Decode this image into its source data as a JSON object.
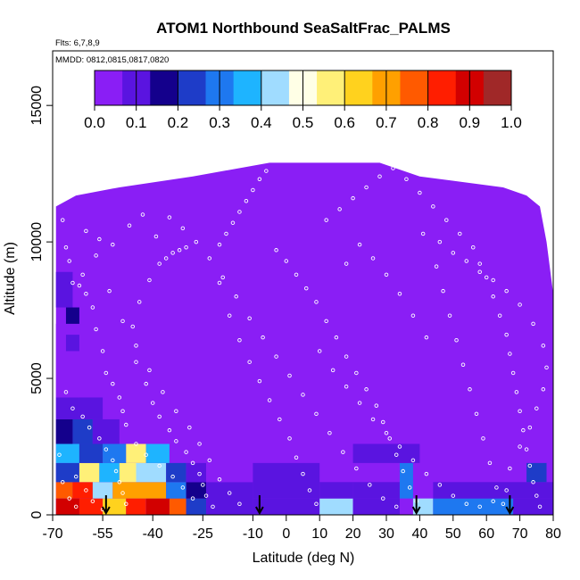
{
  "chart_data": {
    "type": "heatmap",
    "title": "ATOM1 Northbound SeaSaltFrac_PALMS",
    "flights_note": "Flts: 6,7,8,9",
    "dates_note": "MMDD: 0812,0815,0817,0820",
    "xlabel": "Latitude (deg N)",
    "ylabel": "Altitude (m)",
    "xlim": [
      -70,
      80
    ],
    "ylim": [
      0,
      17000
    ],
    "x_ticks": [
      -70,
      -55,
      -40,
      -25,
      -10,
      0,
      10,
      20,
      30,
      40,
      50,
      60,
      70,
      80
    ],
    "x_tick_labels": [
      "-70",
      "-55",
      "-40",
      "-25",
      "-10",
      "0",
      "10",
      "20",
      "30",
      "40",
      "50",
      "60",
      "70",
      "80"
    ],
    "y_ticks": [
      0,
      5000,
      10000,
      15000
    ],
    "y_tick_labels": [
      "0",
      "5000",
      "10000",
      "15000"
    ],
    "colorbar": {
      "range": [
        0,
        1
      ],
      "tick_labels": [
        "0.0",
        "0.1",
        "0.2",
        "0.3",
        "0.4",
        "0.5",
        "0.6",
        "0.7",
        "0.8",
        "0.9",
        "1.0"
      ],
      "colors": [
        "#8a1ef5",
        "#5a14e0",
        "#14008c",
        "#1e3cc8",
        "#1e78f0",
        "#1eb4ff",
        "#a0dcff",
        "#ffffe6",
        "#fff078",
        "#ffd21e",
        "#ffa000",
        "#ff5a00",
        "#ff1e00",
        "#d20000",
        "#a02828"
      ]
    },
    "ceiling_profile": [
      {
        "lat": -69,
        "alt": 11300
      },
      {
        "lat": -63,
        "alt": 11700
      },
      {
        "lat": -50,
        "alt": 12000
      },
      {
        "lat": -28,
        "alt": 12400
      },
      {
        "lat": -5,
        "alt": 12900
      },
      {
        "lat": 28,
        "alt": 12900
      },
      {
        "lat": 40,
        "alt": 12400
      },
      {
        "lat": 65,
        "alt": 12000
      },
      {
        "lat": 72,
        "alt": 11700
      },
      {
        "lat": 76,
        "alt": 11300
      },
      {
        "lat": 78,
        "alt": 10000
      },
      {
        "lat": 80,
        "alt": 8100
      }
    ],
    "background_value": 0.02,
    "regions": [
      {
        "lat": [
          -69,
          -62
        ],
        "alt": [
          0,
          600
        ],
        "value": 0.92
      },
      {
        "lat": [
          -62,
          -55
        ],
        "alt": [
          0,
          600
        ],
        "value": 0.8
      },
      {
        "lat": [
          -55,
          -48
        ],
        "alt": [
          0,
          600
        ],
        "value": 0.65
      },
      {
        "lat": [
          -48,
          -42
        ],
        "alt": [
          0,
          600
        ],
        "value": 0.85
      },
      {
        "lat": [
          -42,
          -35
        ],
        "alt": [
          0,
          600
        ],
        "value": 0.9
      },
      {
        "lat": [
          -35,
          -30
        ],
        "alt": [
          0,
          600
        ],
        "value": 0.78
      },
      {
        "lat": [
          -69,
          -64
        ],
        "alt": [
          600,
          1200
        ],
        "value": 0.75
      },
      {
        "lat": [
          -64,
          -58
        ],
        "alt": [
          600,
          1200
        ],
        "value": 0.85
      },
      {
        "lat": [
          -58,
          -52
        ],
        "alt": [
          600,
          1200
        ],
        "value": 0.45
      },
      {
        "lat": [
          -52,
          -45
        ],
        "alt": [
          600,
          1200
        ],
        "value": 0.68
      },
      {
        "lat": [
          -45,
          -36
        ],
        "alt": [
          600,
          1200
        ],
        "value": 0.7
      },
      {
        "lat": [
          -36,
          -30
        ],
        "alt": [
          600,
          1200
        ],
        "value": 0.3
      },
      {
        "lat": [
          -69,
          -62
        ],
        "alt": [
          1200,
          1900
        ],
        "value": 0.25
      },
      {
        "lat": [
          -62,
          -56
        ],
        "alt": [
          1200,
          1900
        ],
        "value": 0.55
      },
      {
        "lat": [
          -56,
          -50
        ],
        "alt": [
          1200,
          1900
        ],
        "value": 0.35
      },
      {
        "lat": [
          -50,
          -45
        ],
        "alt": [
          1200,
          1900
        ],
        "value": 0.55
      },
      {
        "lat": [
          -45,
          -36
        ],
        "alt": [
          1200,
          1900
        ],
        "value": 0.4
      },
      {
        "lat": [
          -36,
          -30
        ],
        "alt": [
          1200,
          1900
        ],
        "value": 0.25
      },
      {
        "lat": [
          -69,
          -62
        ],
        "alt": [
          1900,
          2600
        ],
        "value": 0.35
      },
      {
        "lat": [
          -62,
          -55
        ],
        "alt": [
          1900,
          2600
        ],
        "value": 0.2
      },
      {
        "lat": [
          -55,
          -48
        ],
        "alt": [
          1900,
          2600
        ],
        "value": 0.3
      },
      {
        "lat": [
          -48,
          -42
        ],
        "alt": [
          1900,
          2600
        ],
        "value": 0.55
      },
      {
        "lat": [
          -42,
          -35
        ],
        "alt": [
          1900,
          2600
        ],
        "value": 0.35
      },
      {
        "lat": [
          -69,
          -64
        ],
        "alt": [
          2600,
          3500
        ],
        "value": 0.15
      },
      {
        "lat": [
          -64,
          -58
        ],
        "alt": [
          2600,
          3500
        ],
        "value": 0.25
      },
      {
        "lat": [
          -58,
          -50
        ],
        "alt": [
          2600,
          3500
        ],
        "value": 0.12
      },
      {
        "lat": [
          -69,
          -62
        ],
        "alt": [
          3500,
          4300
        ],
        "value": 0.1
      },
      {
        "lat": [
          -62,
          -55
        ],
        "alt": [
          3500,
          4300
        ],
        "value": 0.07
      },
      {
        "lat": [
          -69,
          -62
        ],
        "alt": [
          4300,
          7000
        ],
        "value": 0.06
      },
      {
        "lat": [
          -66,
          -62
        ],
        "alt": [
          6000,
          6600
        ],
        "value": 0.12
      },
      {
        "lat": [
          -66,
          -62
        ],
        "alt": [
          7000,
          7600
        ],
        "value": 0.15
      },
      {
        "lat": [
          -69,
          -64
        ],
        "alt": [
          7600,
          8900
        ],
        "value": 0.07
      },
      {
        "lat": [
          -30,
          -24
        ],
        "alt": [
          0,
          600
        ],
        "value": 0.2
      },
      {
        "lat": [
          -30,
          -24
        ],
        "alt": [
          600,
          1200
        ],
        "value": 0.15
      },
      {
        "lat": [
          -30,
          -24
        ],
        "alt": [
          1200,
          1900
        ],
        "value": 0.12
      },
      {
        "lat": [
          -24,
          -10
        ],
        "alt": [
          0,
          1200
        ],
        "value": 0.1
      },
      {
        "lat": [
          -24,
          -10
        ],
        "alt": [
          1200,
          1900
        ],
        "value": 0.06
      },
      {
        "lat": [
          -10,
          10
        ],
        "alt": [
          0,
          600
        ],
        "value": 0.11
      },
      {
        "lat": [
          -10,
          10
        ],
        "alt": [
          600,
          1900
        ],
        "value": 0.07
      },
      {
        "lat": [
          10,
          20
        ],
        "alt": [
          0,
          600
        ],
        "value": 0.45
      },
      {
        "lat": [
          10,
          20
        ],
        "alt": [
          600,
          1200
        ],
        "value": 0.12
      },
      {
        "lat": [
          20,
          34
        ],
        "alt": [
          0,
          600
        ],
        "value": 0.13
      },
      {
        "lat": [
          20,
          34
        ],
        "alt": [
          600,
          1200
        ],
        "value": 0.08
      },
      {
        "lat": [
          34,
          38
        ],
        "alt": [
          600,
          1900
        ],
        "value": 0.3
      },
      {
        "lat": [
          38,
          44
        ],
        "alt": [
          0,
          600
        ],
        "value": 0.4
      },
      {
        "lat": [
          44,
          68
        ],
        "alt": [
          0,
          600
        ],
        "value": 0.3
      },
      {
        "lat": [
          44,
          80
        ],
        "alt": [
          600,
          1200
        ],
        "value": 0.1
      },
      {
        "lat": [
          68,
          80
        ],
        "alt": [
          0,
          600
        ],
        "value": 0.12
      },
      {
        "lat": [
          72,
          78
        ],
        "alt": [
          1200,
          1900
        ],
        "value": 0.2
      },
      {
        "lat": [
          20,
          40
        ],
        "alt": [
          1900,
          2600
        ],
        "value": 0.1
      },
      {
        "lat": [
          -45,
          -5
        ],
        "alt": [
          2600,
          3500
        ],
        "value": 0.04
      },
      {
        "lat": [
          25,
          35
        ],
        "alt": [
          3500,
          5000
        ],
        "value": 0.05
      }
    ],
    "sample_points": [
      [
        -67,
        10800
      ],
      [
        -66,
        9800
      ],
      [
        -64,
        8500
      ],
      [
        -62,
        8400
      ],
      [
        -60,
        8100
      ],
      [
        -58,
        7600
      ],
      [
        -57,
        6800
      ],
      [
        -55,
        6000
      ],
      [
        -54,
        5200
      ],
      [
        -52,
        4800
      ],
      [
        -50,
        4300
      ],
      [
        -49,
        3800
      ],
      [
        -48,
        3300
      ],
      [
        -66,
        4500
      ],
      [
        -64,
        3900
      ],
      [
        -61,
        3600
      ],
      [
        -59,
        3200
      ],
      [
        -56,
        2800
      ],
      [
        -54,
        2400
      ],
      [
        -52,
        2000
      ],
      [
        -51,
        1600
      ],
      [
        -50,
        1200
      ],
      [
        -49,
        800
      ],
      [
        -48,
        400
      ],
      [
        -63,
        1400
      ],
      [
        -60,
        900
      ],
      [
        -58,
        500
      ],
      [
        -55,
        200
      ],
      [
        -46,
        6900
      ],
      [
        -44,
        7800
      ],
      [
        -41,
        8600
      ],
      [
        -38,
        9200
      ],
      [
        -36,
        9400
      ],
      [
        -34,
        9600
      ],
      [
        -32,
        9700
      ],
      [
        -30,
        9800
      ],
      [
        -45,
        5600
      ],
      [
        -42,
        4800
      ],
      [
        -40,
        4100
      ],
      [
        -38,
        3600
      ],
      [
        -35,
        3100
      ],
      [
        -33,
        2700
      ],
      [
        -30,
        2300
      ],
      [
        -28,
        1900
      ],
      [
        -26,
        1500
      ],
      [
        -25,
        1100
      ],
      [
        -24,
        700
      ],
      [
        -22,
        300
      ],
      [
        -20,
        9900
      ],
      [
        -18,
        10300
      ],
      [
        -16,
        10700
      ],
      [
        -14,
        11100
      ],
      [
        -12,
        11500
      ],
      [
        -10,
        11900
      ],
      [
        -8,
        12300
      ],
      [
        -6,
        12600
      ],
      [
        -20,
        8500
      ],
      [
        -17,
        7300
      ],
      [
        -14,
        6400
      ],
      [
        -11,
        5600
      ],
      [
        -8,
        4900
      ],
      [
        -5,
        4200
      ],
      [
        -2,
        3500
      ],
      [
        1,
        2800
      ],
      [
        3,
        2100
      ],
      [
        5,
        1500
      ],
      [
        7,
        900
      ],
      [
        9,
        400
      ],
      [
        -3,
        9700
      ],
      [
        0,
        9300
      ],
      [
        3,
        8800
      ],
      [
        6,
        8300
      ],
      [
        9,
        7800
      ],
      [
        12,
        7100
      ],
      [
        15,
        6500
      ],
      [
        18,
        5800
      ],
      [
        21,
        5200
      ],
      [
        24,
        4600
      ],
      [
        27,
        4000
      ],
      [
        29,
        3400
      ],
      [
        31,
        2800
      ],
      [
        33,
        2200
      ],
      [
        35,
        1600
      ],
      [
        37,
        1000
      ],
      [
        39,
        500
      ],
      [
        12,
        10800
      ],
      [
        16,
        11200
      ],
      [
        20,
        11600
      ],
      [
        24,
        12000
      ],
      [
        28,
        12400
      ],
      [
        32,
        12700
      ],
      [
        36,
        12300
      ],
      [
        40,
        11800
      ],
      [
        44,
        11300
      ],
      [
        48,
        10800
      ],
      [
        52,
        10300
      ],
      [
        56,
        9800
      ],
      [
        58,
        9200
      ],
      [
        60,
        8700
      ],
      [
        62,
        8000
      ],
      [
        64,
        7300
      ],
      [
        66,
        6600
      ],
      [
        67,
        5900
      ],
      [
        68,
        5200
      ],
      [
        69,
        4500
      ],
      [
        70,
        3800
      ],
      [
        71,
        3100
      ],
      [
        72,
        2400
      ],
      [
        73,
        1800
      ],
      [
        74,
        1200
      ],
      [
        75,
        700
      ],
      [
        76,
        300
      ],
      [
        45,
        9100
      ],
      [
        47,
        8200
      ],
      [
        49,
        7300
      ],
      [
        51,
        6400
      ],
      [
        53,
        5500
      ],
      [
        55,
        4600
      ],
      [
        57,
        3700
      ],
      [
        59,
        2800
      ],
      [
        61,
        1900
      ],
      [
        63,
        1000
      ],
      [
        65,
        400
      ],
      [
        42,
        6500
      ],
      [
        38,
        7300
      ],
      [
        34,
        8100
      ],
      [
        30,
        8800
      ],
      [
        26,
        9400
      ],
      [
        22,
        9900
      ],
      [
        18,
        9200
      ],
      [
        -60,
        10400
      ],
      [
        -56,
        10100
      ],
      [
        -52,
        9900
      ],
      [
        -47,
        10600
      ],
      [
        -43,
        11000
      ],
      [
        -39,
        10200
      ],
      [
        -35,
        10900
      ],
      [
        -31,
        10500
      ],
      [
        -27,
        10000
      ],
      [
        -23,
        9400
      ],
      [
        -19,
        8700
      ],
      [
        -15,
        8000
      ],
      [
        -11,
        7200
      ],
      [
        -7,
        6500
      ],
      [
        -3,
        5800
      ],
      [
        1,
        5100
      ],
      [
        5,
        4400
      ],
      [
        9,
        3700
      ],
      [
        13,
        3000
      ],
      [
        17,
        2300
      ],
      [
        21,
        1700
      ],
      [
        25,
        1100
      ],
      [
        29,
        600
      ],
      [
        33,
        300
      ],
      [
        41,
        10300
      ],
      [
        46,
        10000
      ],
      [
        50,
        9600
      ],
      [
        54,
        9300
      ],
      [
        58,
        8900
      ],
      [
        62,
        8600
      ],
      [
        66,
        8200
      ],
      [
        70,
        7700
      ],
      [
        74,
        7000
      ],
      [
        77,
        6200
      ],
      [
        78,
        5400
      ],
      [
        77,
        4600
      ],
      [
        75,
        3900
      ],
      [
        73,
        3200
      ],
      [
        70,
        2500
      ],
      [
        67,
        1700
      ],
      [
        -68,
        2200
      ],
      [
        -67,
        1200
      ],
      [
        -65,
        600
      ],
      [
        -63,
        300
      ],
      [
        -45,
        2600
      ],
      [
        -42,
        2200
      ],
      [
        -38,
        1800
      ],
      [
        -34,
        1400
      ],
      [
        -31,
        1000
      ],
      [
        -28,
        600
      ],
      [
        -65,
        9300
      ],
      [
        -61,
        8800
      ],
      [
        -57,
        9500
      ],
      [
        -53,
        8200
      ],
      [
        -49,
        7100
      ],
      [
        -45,
        6200
      ],
      [
        -41,
        5300
      ],
      [
        -37,
        4500
      ],
      [
        -33,
        3800
      ],
      [
        -29,
        3200
      ],
      [
        -26,
        2600
      ],
      [
        -23,
        2000
      ],
      [
        -20,
        1300
      ],
      [
        -17,
        800
      ],
      [
        -14,
        400
      ],
      [
        10,
        6000
      ],
      [
        14,
        5300
      ],
      [
        18,
        4700
      ],
      [
        22,
        4100
      ],
      [
        26,
        3500
      ],
      [
        30,
        3000
      ],
      [
        34,
        2500
      ],
      [
        38,
        2000
      ],
      [
        42,
        1500
      ],
      [
        46,
        1100
      ],
      [
        50,
        700
      ],
      [
        54,
        400
      ],
      [
        58,
        300
      ],
      [
        62,
        500
      ],
      [
        66,
        900
      ]
    ],
    "flight_arrows_lat": [
      -54,
      -8,
      39,
      67
    ]
  }
}
